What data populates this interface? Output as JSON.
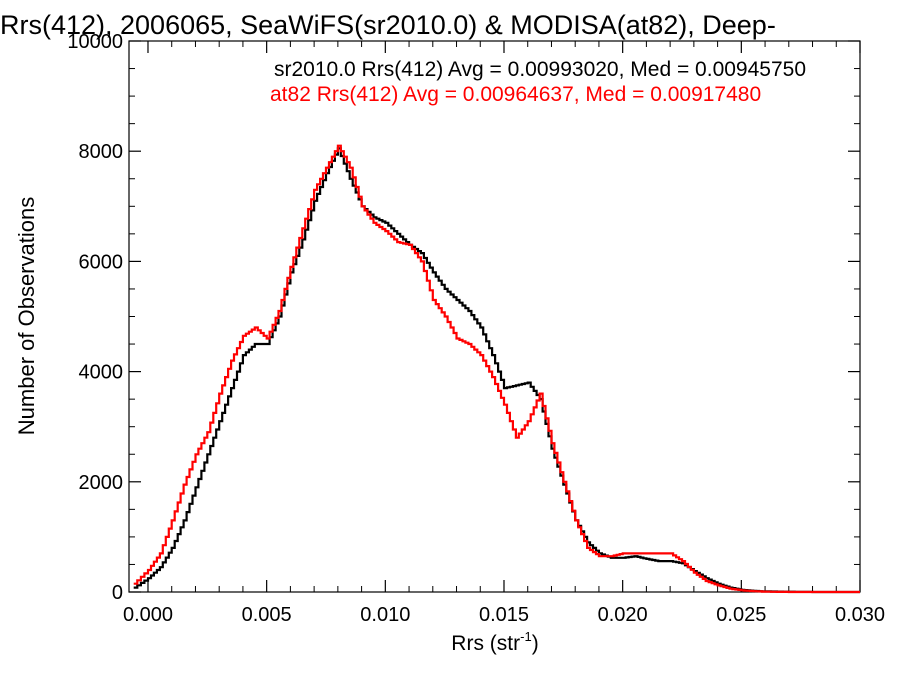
{
  "chart_data": {
    "type": "line",
    "title": "Rrs(412), 2006065, SeaWiFS(sr2010.0) & MODISA(at82), Deep-",
    "xlabel": "Rrs (str",
    "xlabel_sup": "-1",
    "xlabel_close": ")",
    "ylabel": "Number of Observations",
    "xlim": [
      -0.0008,
      0.03
    ],
    "ylim": [
      0,
      10000
    ],
    "x_ticks": [
      0.0,
      0.005,
      0.01,
      0.015,
      0.02,
      0.025,
      0.03
    ],
    "x_tick_labels": [
      "0.000",
      "0.005",
      "0.010",
      "0.015",
      "0.020",
      "0.025",
      "0.030"
    ],
    "y_ticks": [
      0,
      2000,
      4000,
      6000,
      8000,
      10000
    ],
    "y_tick_labels": [
      "0",
      "2000",
      "4000",
      "6000",
      "8000",
      "10000"
    ],
    "grid": false,
    "annotations": [
      {
        "text": "sr2010.0 Rrs(412) Avg = 0.00993020, Med = 0.00945750",
        "color": "#000000"
      },
      {
        "text": "at82 Rrs(412) Avg = 0.00964637, Med = 0.00917480",
        "color": "#ff0000"
      }
    ],
    "series": [
      {
        "color": "#000000",
        "x": [
          -0.0006,
          0.0,
          0.0005,
          0.001,
          0.0015,
          0.002,
          0.0025,
          0.003,
          0.0035,
          0.004,
          0.0045,
          0.005,
          0.0055,
          0.006,
          0.0065,
          0.007,
          0.0075,
          0.008,
          0.0085,
          0.009,
          0.0095,
          0.01,
          0.0105,
          0.011,
          0.0115,
          0.012,
          0.0125,
          0.013,
          0.0135,
          0.014,
          0.0145,
          0.015,
          0.0155,
          0.016,
          0.0165,
          0.017,
          0.0175,
          0.018,
          0.0185,
          0.019,
          0.0195,
          0.02,
          0.0205,
          0.021,
          0.0215,
          0.022,
          0.0225,
          0.023,
          0.0235,
          0.024,
          0.0245,
          0.025,
          0.0255,
          0.026,
          0.027,
          0.028,
          0.029,
          0.03
        ],
        "y": [
          80,
          250,
          450,
          800,
          1300,
          1900,
          2500,
          3100,
          3700,
          4300,
          4500,
          4500,
          5000,
          5800,
          6400,
          7100,
          7600,
          8050,
          7500,
          7000,
          6800,
          6700,
          6500,
          6300,
          6150,
          5800,
          5500,
          5300,
          5100,
          4800,
          4300,
          3700,
          3750,
          3800,
          3500,
          2600,
          1950,
          1300,
          900,
          700,
          620,
          620,
          650,
          600,
          560,
          560,
          520,
          380,
          250,
          150,
          80,
          40,
          20,
          10,
          5,
          0,
          0,
          0
        ]
      },
      {
        "color": "#ff0000",
        "x": [
          -0.0006,
          0.0,
          0.0005,
          0.001,
          0.0015,
          0.002,
          0.0025,
          0.003,
          0.0035,
          0.004,
          0.0045,
          0.005,
          0.0055,
          0.006,
          0.0065,
          0.007,
          0.0075,
          0.008,
          0.0085,
          0.009,
          0.0095,
          0.01,
          0.0105,
          0.011,
          0.0115,
          0.012,
          0.0125,
          0.013,
          0.0135,
          0.014,
          0.0145,
          0.015,
          0.0155,
          0.016,
          0.0165,
          0.017,
          0.0175,
          0.018,
          0.0185,
          0.019,
          0.0195,
          0.02,
          0.0205,
          0.021,
          0.0215,
          0.022,
          0.0225,
          0.023,
          0.0235,
          0.024,
          0.0245,
          0.025,
          0.0255,
          0.026,
          0.027,
          0.028,
          0.029,
          0.03
        ],
        "y": [
          150,
          400,
          700,
          1300,
          1950,
          2500,
          2900,
          3600,
          4200,
          4650,
          4800,
          4600,
          5100,
          5900,
          6600,
          7300,
          7700,
          8100,
          7700,
          7000,
          6700,
          6550,
          6350,
          6300,
          6000,
          5300,
          5000,
          4600,
          4500,
          4300,
          3900,
          3400,
          2800,
          3100,
          3600,
          2700,
          2000,
          1300,
          800,
          650,
          650,
          700,
          700,
          700,
          700,
          700,
          560,
          350,
          200,
          120,
          60,
          30,
          15,
          5,
          0,
          0,
          0,
          0
        ]
      }
    ]
  }
}
